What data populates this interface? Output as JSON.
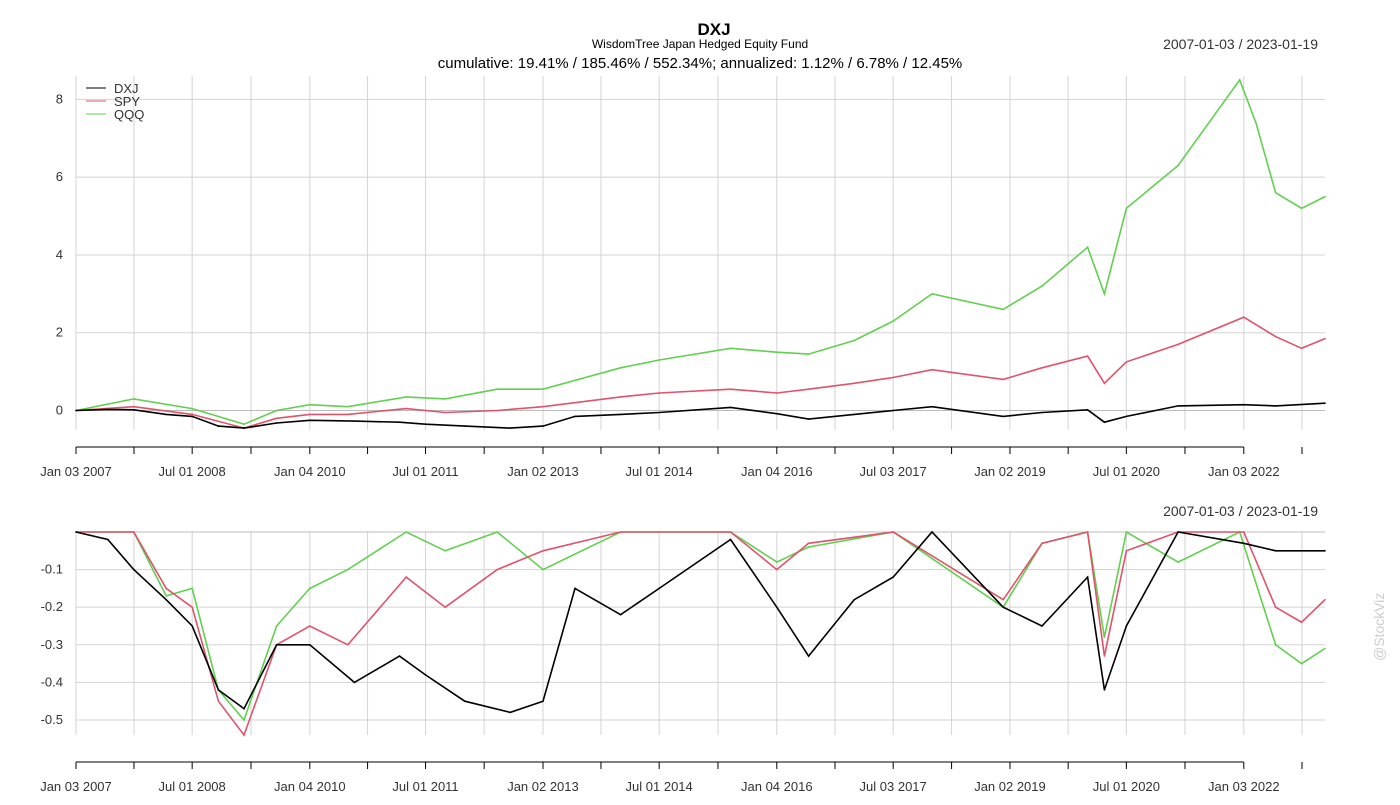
{
  "header": {
    "title": "DXJ",
    "subtitle": "WisdomTree Japan Hedged Equity Fund",
    "stats_line": "cumulative: 19.41% / 185.46% / 552.34%; annualized: 1.12% / 6.78% / 12.45%",
    "date_range": "2007-01-03 / 2023-01-19"
  },
  "watermark": "@StockViz",
  "colors": {
    "DXJ": "#000000",
    "SPY": "#df536b",
    "QQQ": "#61d04f"
  },
  "chart_data": [
    {
      "type": "line",
      "title": "DXJ",
      "subtitle": "WisdomTree Japan Hedged Equity Fund",
      "panel": "cumulative returns",
      "date_range": "2007-01-03 / 2023-01-19",
      "x_tick_labels": [
        "Jan 03 2007",
        "Jul 01 2008",
        "Jan 04 2010",
        "Jul 01 2011",
        "Jan 02 2013",
        "Jul 01 2014",
        "Jan 04 2016",
        "Jul 03 2017",
        "Jan 02 2019",
        "Jul 01 2020",
        "Jan 03 2022"
      ],
      "y_ticks": [
        0,
        2,
        4,
        6,
        8
      ],
      "ylim": [
        -0.5,
        8.6
      ],
      "legend": {
        "position": "top-left",
        "entries": [
          "DXJ",
          "SPY",
          "QQQ"
        ]
      },
      "grid": true,
      "series": [
        {
          "name": "DXJ",
          "points": [
            {
              "x": "2007-01-03",
              "y": 0.0
            },
            {
              "x": "2007-06-01",
              "y": 0.03
            },
            {
              "x": "2007-10-01",
              "y": 0.02
            },
            {
              "x": "2008-03-01",
              "y": -0.1
            },
            {
              "x": "2008-07-01",
              "y": -0.15
            },
            {
              "x": "2008-11-01",
              "y": -0.4
            },
            {
              "x": "2009-03-01",
              "y": -0.45
            },
            {
              "x": "2009-08-01",
              "y": -0.32
            },
            {
              "x": "2010-01-04",
              "y": -0.25
            },
            {
              "x": "2010-08-01",
              "y": -0.27
            },
            {
              "x": "2011-03-01",
              "y": -0.3
            },
            {
              "x": "2011-07-01",
              "y": -0.35
            },
            {
              "x": "2012-01-01",
              "y": -0.4
            },
            {
              "x": "2012-08-01",
              "y": -0.45
            },
            {
              "x": "2013-01-02",
              "y": -0.4
            },
            {
              "x": "2013-06-01",
              "y": -0.15
            },
            {
              "x": "2014-01-01",
              "y": -0.1
            },
            {
              "x": "2014-07-01",
              "y": -0.05
            },
            {
              "x": "2015-06-01",
              "y": 0.08
            },
            {
              "x": "2016-01-04",
              "y": -0.08
            },
            {
              "x": "2016-06-01",
              "y": -0.22
            },
            {
              "x": "2017-01-01",
              "y": -0.1
            },
            {
              "x": "2017-07-03",
              "y": 0.0
            },
            {
              "x": "2018-01-01",
              "y": 0.1
            },
            {
              "x": "2018-12-01",
              "y": -0.15
            },
            {
              "x": "2019-06-01",
              "y": -0.05
            },
            {
              "x": "2020-01-01",
              "y": 0.02
            },
            {
              "x": "2020-03-20",
              "y": -0.3
            },
            {
              "x": "2020-07-01",
              "y": -0.15
            },
            {
              "x": "2021-03-01",
              "y": 0.12
            },
            {
              "x": "2022-01-03",
              "y": 0.15
            },
            {
              "x": "2022-06-01",
              "y": 0.12
            },
            {
              "x": "2023-01-19",
              "y": 0.19
            }
          ]
        },
        {
          "name": "SPY",
          "points": [
            {
              "x": "2007-01-03",
              "y": 0.0
            },
            {
              "x": "2007-10-01",
              "y": 0.1
            },
            {
              "x": "2008-07-01",
              "y": -0.1
            },
            {
              "x": "2009-03-01",
              "y": -0.45
            },
            {
              "x": "2009-08-01",
              "y": -0.2
            },
            {
              "x": "2010-01-04",
              "y": -0.1
            },
            {
              "x": "2010-07-01",
              "y": -0.1
            },
            {
              "x": "2011-04-01",
              "y": 0.05
            },
            {
              "x": "2011-10-01",
              "y": -0.05
            },
            {
              "x": "2012-06-01",
              "y": 0.0
            },
            {
              "x": "2013-01-02",
              "y": 0.1
            },
            {
              "x": "2014-01-01",
              "y": 0.35
            },
            {
              "x": "2014-07-01",
              "y": 0.45
            },
            {
              "x": "2015-06-01",
              "y": 0.55
            },
            {
              "x": "2016-01-04",
              "y": 0.45
            },
            {
              "x": "2016-06-01",
              "y": 0.55
            },
            {
              "x": "2017-01-01",
              "y": 0.7
            },
            {
              "x": "2017-07-03",
              "y": 0.85
            },
            {
              "x": "2018-01-01",
              "y": 1.05
            },
            {
              "x": "2018-12-01",
              "y": 0.8
            },
            {
              "x": "2019-06-01",
              "y": 1.1
            },
            {
              "x": "2020-01-01",
              "y": 1.4
            },
            {
              "x": "2020-03-20",
              "y": 0.7
            },
            {
              "x": "2020-07-01",
              "y": 1.25
            },
            {
              "x": "2021-03-01",
              "y": 1.7
            },
            {
              "x": "2022-01-03",
              "y": 2.4
            },
            {
              "x": "2022-06-01",
              "y": 1.9
            },
            {
              "x": "2022-10-01",
              "y": 1.6
            },
            {
              "x": "2023-01-19",
              "y": 1.85
            }
          ]
        },
        {
          "name": "QQQ",
          "points": [
            {
              "x": "2007-01-03",
              "y": 0.0
            },
            {
              "x": "2007-10-01",
              "y": 0.3
            },
            {
              "x": "2008-07-01",
              "y": 0.05
            },
            {
              "x": "2009-03-01",
              "y": -0.35
            },
            {
              "x": "2009-08-01",
              "y": 0.0
            },
            {
              "x": "2010-01-04",
              "y": 0.15
            },
            {
              "x": "2010-07-01",
              "y": 0.1
            },
            {
              "x": "2011-04-01",
              "y": 0.35
            },
            {
              "x": "2011-10-01",
              "y": 0.3
            },
            {
              "x": "2012-06-01",
              "y": 0.55
            },
            {
              "x": "2013-01-02",
              "y": 0.55
            },
            {
              "x": "2014-01-01",
              "y": 1.1
            },
            {
              "x": "2014-07-01",
              "y": 1.3
            },
            {
              "x": "2015-06-01",
              "y": 1.6
            },
            {
              "x": "2016-01-04",
              "y": 1.5
            },
            {
              "x": "2016-06-01",
              "y": 1.45
            },
            {
              "x": "2017-01-01",
              "y": 1.8
            },
            {
              "x": "2017-07-03",
              "y": 2.3
            },
            {
              "x": "2018-01-01",
              "y": 3.0
            },
            {
              "x": "2018-12-01",
              "y": 2.6
            },
            {
              "x": "2019-06-01",
              "y": 3.2
            },
            {
              "x": "2020-01-01",
              "y": 4.2
            },
            {
              "x": "2020-03-20",
              "y": 3.0
            },
            {
              "x": "2020-07-01",
              "y": 5.2
            },
            {
              "x": "2021-03-01",
              "y": 6.3
            },
            {
              "x": "2021-12-15",
              "y": 8.5
            },
            {
              "x": "2022-03-01",
              "y": 7.4
            },
            {
              "x": "2022-06-01",
              "y": 5.6
            },
            {
              "x": "2022-10-01",
              "y": 5.2
            },
            {
              "x": "2023-01-19",
              "y": 5.5
            }
          ]
        }
      ]
    },
    {
      "type": "line",
      "panel": "drawdowns",
      "date_range": "2007-01-03 / 2023-01-19",
      "x_tick_labels": [
        "Jan 03 2007",
        "Jul 01 2008",
        "Jan 04 2010",
        "Jul 01 2011",
        "Jan 02 2013",
        "Jul 01 2014",
        "Jan 04 2016",
        "Jul 03 2017",
        "Jan 02 2019",
        "Jul 01 2020",
        "Jan 03 2022"
      ],
      "y_ticks": [
        -0.1,
        -0.2,
        -0.3,
        -0.4,
        -0.5
      ],
      "ylim": [
        -0.54,
        0.0
      ],
      "grid": true,
      "series": [
        {
          "name": "DXJ",
          "points": [
            {
              "x": "2007-01-03",
              "y": 0.0
            },
            {
              "x": "2007-06-01",
              "y": -0.02
            },
            {
              "x": "2007-10-01",
              "y": -0.1
            },
            {
              "x": "2008-03-01",
              "y": -0.18
            },
            {
              "x": "2008-07-01",
              "y": -0.25
            },
            {
              "x": "2008-11-01",
              "y": -0.42
            },
            {
              "x": "2009-03-01",
              "y": -0.47
            },
            {
              "x": "2009-08-01",
              "y": -0.3
            },
            {
              "x": "2010-01-04",
              "y": -0.3
            },
            {
              "x": "2010-08-01",
              "y": -0.4
            },
            {
              "x": "2011-03-01",
              "y": -0.33
            },
            {
              "x": "2011-07-01",
              "y": -0.38
            },
            {
              "x": "2012-01-01",
              "y": -0.45
            },
            {
              "x": "2012-08-01",
              "y": -0.48
            },
            {
              "x": "2013-01-02",
              "y": -0.45
            },
            {
              "x": "2013-06-01",
              "y": -0.15
            },
            {
              "x": "2014-01-01",
              "y": -0.22
            },
            {
              "x": "2014-07-01",
              "y": -0.15
            },
            {
              "x": "2015-06-01",
              "y": -0.02
            },
            {
              "x": "2016-01-04",
              "y": -0.2
            },
            {
              "x": "2016-06-01",
              "y": -0.33
            },
            {
              "x": "2017-01-01",
              "y": -0.18
            },
            {
              "x": "2017-07-03",
              "y": -0.12
            },
            {
              "x": "2018-01-01",
              "y": 0.0
            },
            {
              "x": "2018-12-01",
              "y": -0.2
            },
            {
              "x": "2019-06-01",
              "y": -0.25
            },
            {
              "x": "2020-01-01",
              "y": -0.12
            },
            {
              "x": "2020-03-20",
              "y": -0.42
            },
            {
              "x": "2020-07-01",
              "y": -0.25
            },
            {
              "x": "2021-03-01",
              "y": 0.0
            },
            {
              "x": "2022-01-03",
              "y": -0.03
            },
            {
              "x": "2022-06-01",
              "y": -0.05
            },
            {
              "x": "2023-01-19",
              "y": -0.05
            }
          ]
        },
        {
          "name": "SPY",
          "points": [
            {
              "x": "2007-01-03",
              "y": 0.0
            },
            {
              "x": "2007-10-01",
              "y": 0.0
            },
            {
              "x": "2008-03-01",
              "y": -0.15
            },
            {
              "x": "2008-07-01",
              "y": -0.2
            },
            {
              "x": "2008-11-01",
              "y": -0.45
            },
            {
              "x": "2009-03-01",
              "y": -0.54
            },
            {
              "x": "2009-08-01",
              "y": -0.3
            },
            {
              "x": "2010-01-04",
              "y": -0.25
            },
            {
              "x": "2010-07-01",
              "y": -0.3
            },
            {
              "x": "2011-04-01",
              "y": -0.12
            },
            {
              "x": "2011-10-01",
              "y": -0.2
            },
            {
              "x": "2012-06-01",
              "y": -0.1
            },
            {
              "x": "2013-01-02",
              "y": -0.05
            },
            {
              "x": "2014-01-01",
              "y": 0.0
            },
            {
              "x": "2015-06-01",
              "y": 0.0
            },
            {
              "x": "2016-01-04",
              "y": -0.1
            },
            {
              "x": "2016-06-01",
              "y": -0.03
            },
            {
              "x": "2017-07-03",
              "y": 0.0
            },
            {
              "x": "2018-12-01",
              "y": -0.18
            },
            {
              "x": "2019-06-01",
              "y": -0.03
            },
            {
              "x": "2020-01-01",
              "y": 0.0
            },
            {
              "x": "2020-03-20",
              "y": -0.33
            },
            {
              "x": "2020-07-01",
              "y": -0.05
            },
            {
              "x": "2021-03-01",
              "y": 0.0
            },
            {
              "x": "2022-01-03",
              "y": 0.0
            },
            {
              "x": "2022-06-01",
              "y": -0.2
            },
            {
              "x": "2022-10-01",
              "y": -0.24
            },
            {
              "x": "2023-01-19",
              "y": -0.18
            }
          ]
        },
        {
          "name": "QQQ",
          "points": [
            {
              "x": "2007-01-03",
              "y": 0.0
            },
            {
              "x": "2007-10-01",
              "y": 0.0
            },
            {
              "x": "2008-03-01",
              "y": -0.17
            },
            {
              "x": "2008-07-01",
              "y": -0.15
            },
            {
              "x": "2008-11-01",
              "y": -0.42
            },
            {
              "x": "2009-03-01",
              "y": -0.5
            },
            {
              "x": "2009-08-01",
              "y": -0.25
            },
            {
              "x": "2010-01-04",
              "y": -0.15
            },
            {
              "x": "2010-07-01",
              "y": -0.1
            },
            {
              "x": "2011-04-01",
              "y": 0.0
            },
            {
              "x": "2011-10-01",
              "y": -0.05
            },
            {
              "x": "2012-06-01",
              "y": 0.0
            },
            {
              "x": "2013-01-02",
              "y": -0.1
            },
            {
              "x": "2014-01-01",
              "y": 0.0
            },
            {
              "x": "2015-06-01",
              "y": 0.0
            },
            {
              "x": "2016-01-04",
              "y": -0.08
            },
            {
              "x": "2016-06-01",
              "y": -0.04
            },
            {
              "x": "2017-07-03",
              "y": 0.0
            },
            {
              "x": "2018-12-01",
              "y": -0.2
            },
            {
              "x": "2019-06-01",
              "y": -0.03
            },
            {
              "x": "2020-01-01",
              "y": 0.0
            },
            {
              "x": "2020-03-20",
              "y": -0.28
            },
            {
              "x": "2020-07-01",
              "y": 0.0
            },
            {
              "x": "2021-03-01",
              "y": -0.08
            },
            {
              "x": "2021-12-15",
              "y": 0.0
            },
            {
              "x": "2022-06-01",
              "y": -0.3
            },
            {
              "x": "2022-10-01",
              "y": -0.35
            },
            {
              "x": "2023-01-19",
              "y": -0.31
            }
          ]
        }
      ]
    }
  ]
}
